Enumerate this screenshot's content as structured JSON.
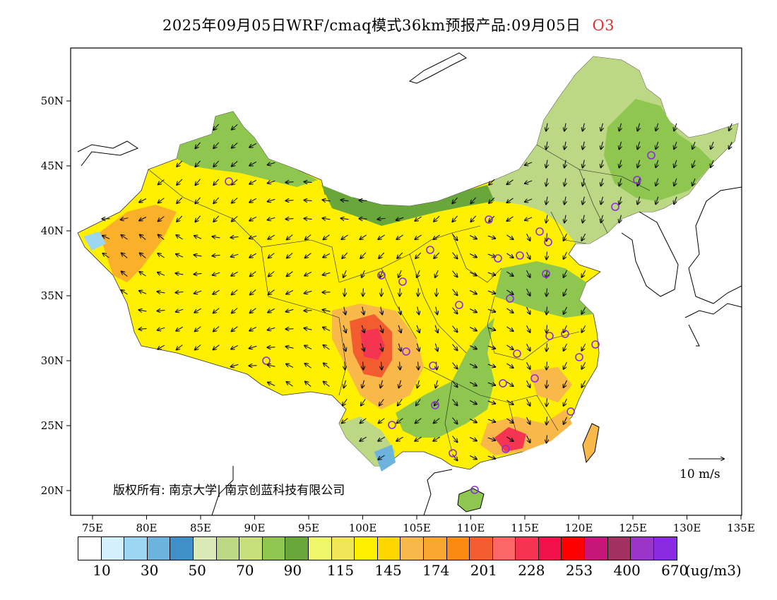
{
  "title": {
    "main": "2025年09月05日WRF/cmaq模式36km预报产品:09月05日",
    "species": "O3"
  },
  "axes": {
    "lon_labels": [
      "75E",
      "80E",
      "85E",
      "90E",
      "95E",
      "100E",
      "105E",
      "110E",
      "115E",
      "120E",
      "125E",
      "130E",
      "135E"
    ],
    "lat_labels": [
      "50N",
      "45N",
      "40N",
      "35N",
      "30N",
      "25N",
      "20N"
    ]
  },
  "colorbar": {
    "colors": [
      "#ffffff",
      "#d4f0fb",
      "#9bd7f3",
      "#6cb3dd",
      "#3f8fc8",
      "#dbe9b7",
      "#bdd884",
      "#c7df7a",
      "#8fc64f",
      "#6aa73a",
      "#eef76a",
      "#f1e55a",
      "#fff000",
      "#ffd700",
      "#f8b94a",
      "#f9a630",
      "#fa8a12",
      "#f25c2e",
      "#fb6767",
      "#f53452",
      "#f0114b",
      "#ff0000",
      "#c7167a",
      "#a23060",
      "#9b35c9",
      "#8a2be2"
    ],
    "labels": [
      "10",
      "30",
      "50",
      "70",
      "90",
      "115",
      "145",
      "174",
      "201",
      "228",
      "253",
      "400",
      "670"
    ],
    "unit": "(ug/m3)"
  },
  "copyright": "版权所有: 南京大学| 南京创蓝科技有限公司",
  "wind_scale": "10 m/s",
  "colors": {
    "title_species": "#e23030",
    "station_marker": "#8a2be2"
  }
}
